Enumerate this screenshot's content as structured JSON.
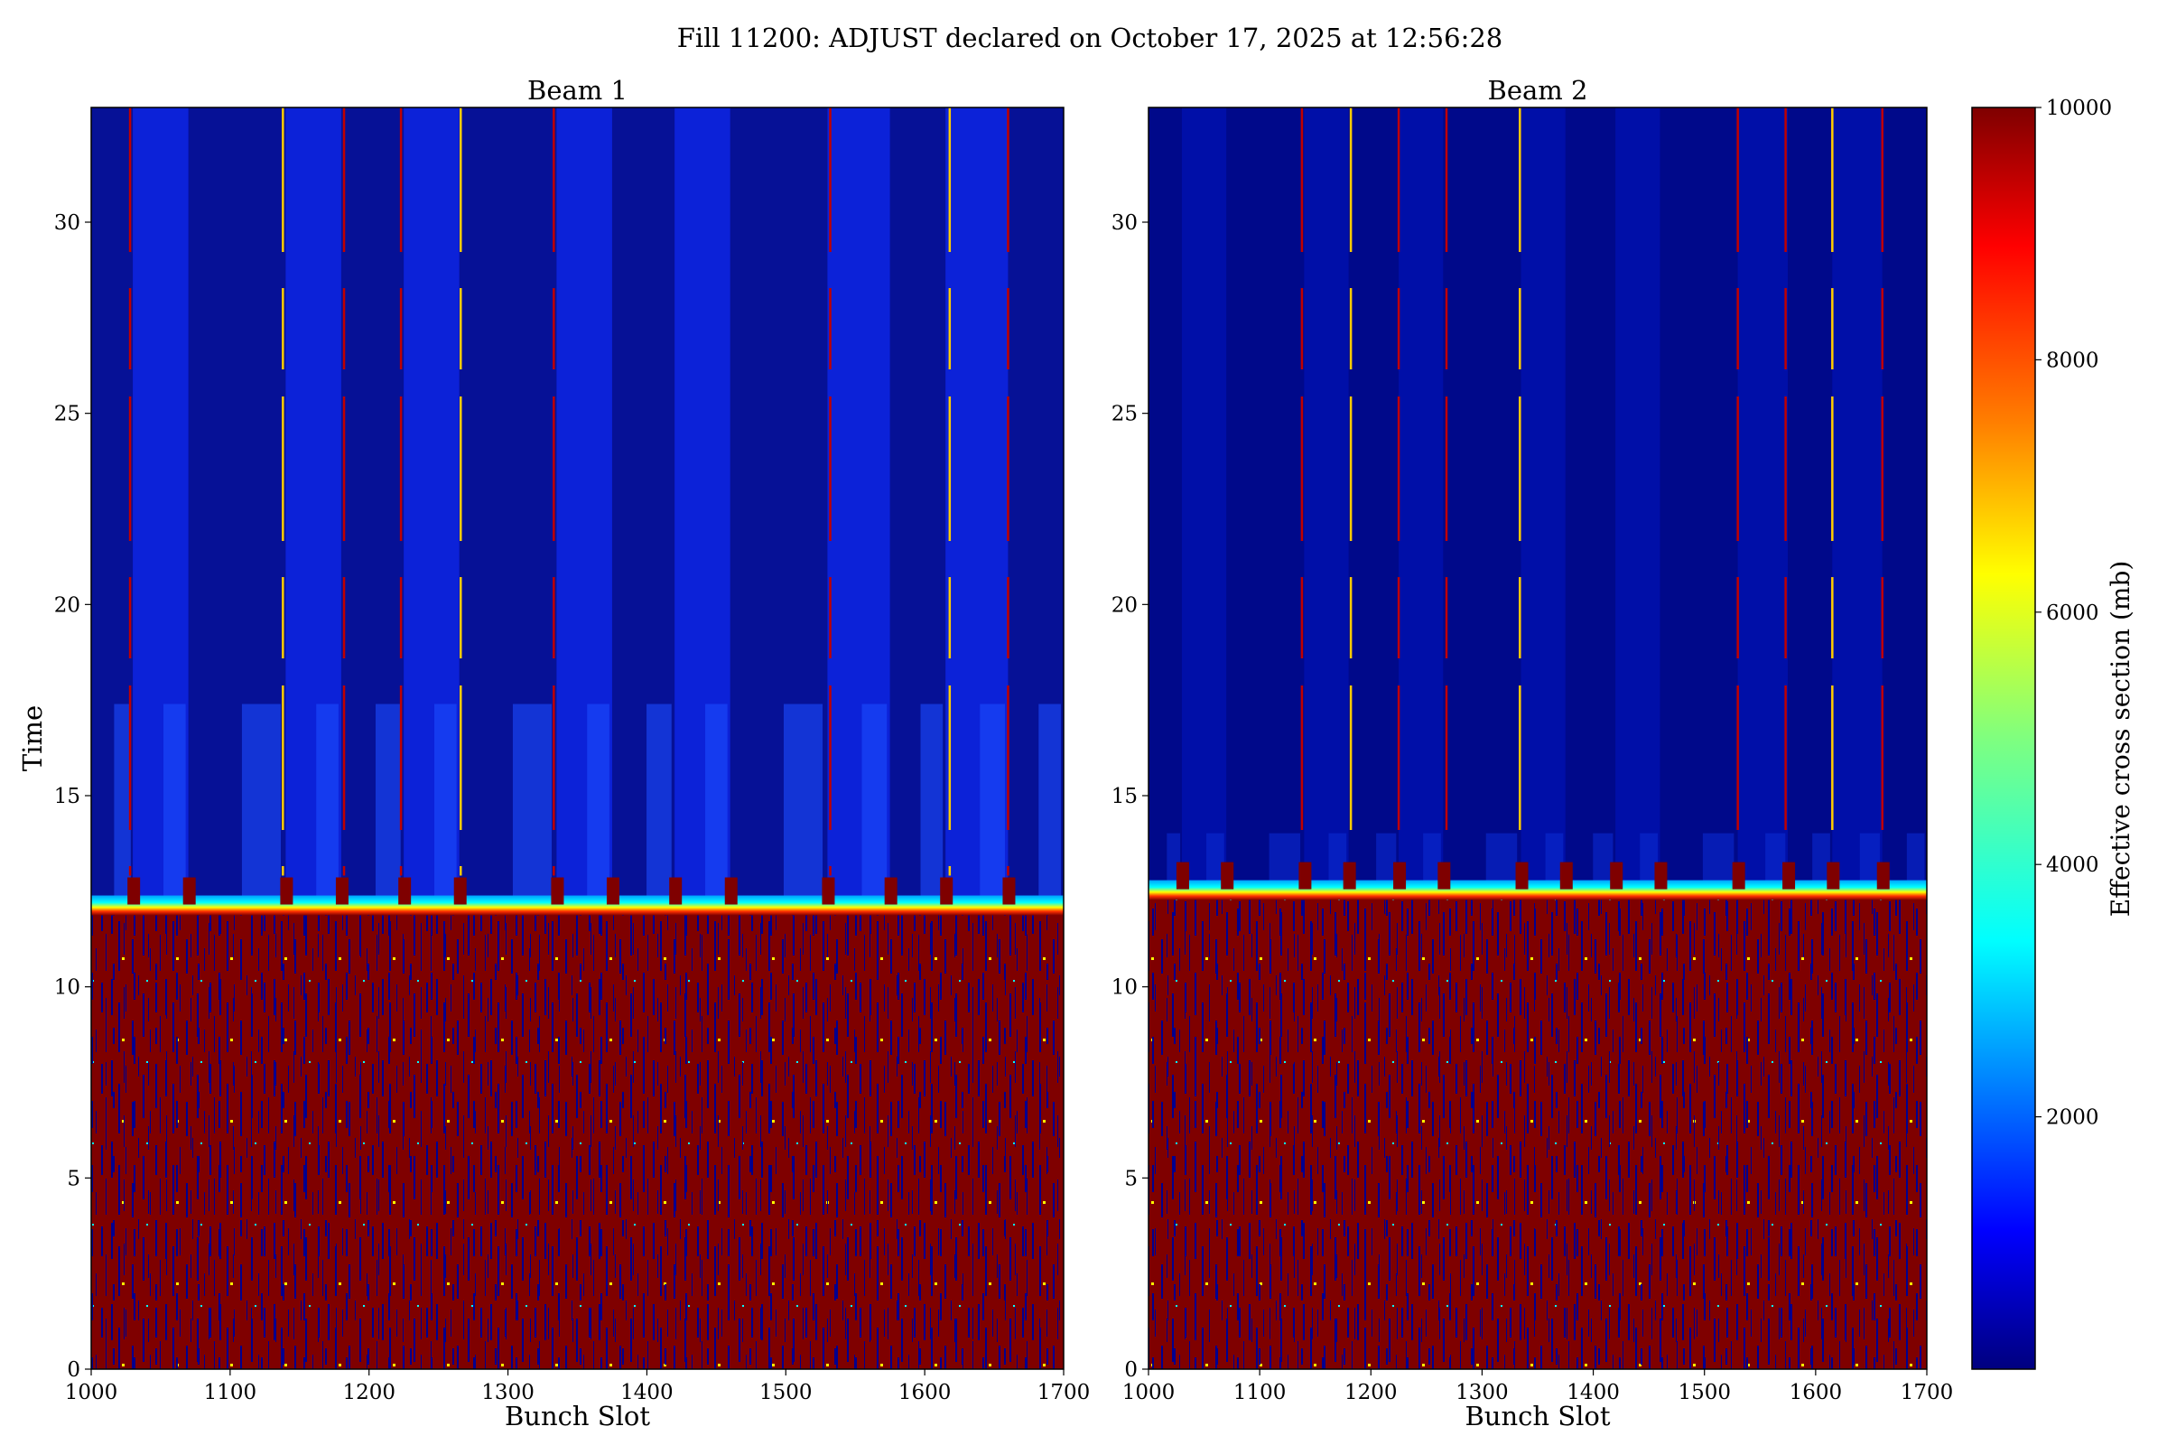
{
  "figure": {
    "suptitle": "Fill 11200: ADJUST declared on October 17, 2025 at 12:56:28"
  },
  "colors": {
    "background_high": "#7f0000",
    "background_low": "#00008f",
    "colormap": [
      "#00007f",
      "#0000ff",
      "#007fff",
      "#00ffff",
      "#7fff7f",
      "#ffff00",
      "#ff7f00",
      "#ff0000",
      "#7f0000"
    ]
  },
  "chart_data": [
    {
      "type": "heatmap",
      "title": "Beam 1",
      "xlabel": "Bunch Slot",
      "ylabel": "Time",
      "xlim": [
        1000,
        1700
      ],
      "ylim": [
        0,
        33
      ],
      "xticks": [
        "1000",
        "1100",
        "1200",
        "1300",
        "1400",
        "1500",
        "1600",
        "1700"
      ],
      "yticks": [
        "0",
        "5",
        "10",
        "15",
        "20",
        "25",
        "30"
      ],
      "transition_time": 12.2,
      "train_starts": [
        1000,
        1030,
        1070,
        1140,
        1180,
        1225,
        1265,
        1335,
        1375,
        1420,
        1460,
        1530,
        1575,
        1615,
        1660
      ],
      "spike_slots": [
        1028,
        1138,
        1182,
        1223,
        1266,
        1333,
        1532,
        1618,
        1660
      ]
    },
    {
      "type": "heatmap",
      "title": "Beam 2",
      "xlabel": "Bunch Slot",
      "ylabel": "",
      "xlim": [
        1000,
        1700
      ],
      "ylim": [
        0,
        33
      ],
      "xticks": [
        "1000",
        "1100",
        "1200",
        "1300",
        "1400",
        "1500",
        "1600",
        "1700"
      ],
      "yticks": [
        "0",
        "5",
        "10",
        "15",
        "20",
        "25",
        "30"
      ],
      "transition_time": 12.6,
      "train_starts": [
        1000,
        1030,
        1070,
        1140,
        1180,
        1225,
        1265,
        1335,
        1375,
        1420,
        1460,
        1530,
        1575,
        1615,
        1660
      ],
      "spike_slots": [
        1138,
        1182,
        1225,
        1268,
        1334,
        1530,
        1573,
        1615,
        1660
      ]
    }
  ],
  "colorbar": {
    "label": "Effective cross section (mb)",
    "min": 0,
    "max": 10000,
    "ticks": [
      "2000",
      "4000",
      "6000",
      "8000",
      "10000"
    ],
    "tick_values": [
      2000,
      4000,
      6000,
      8000,
      10000
    ]
  }
}
